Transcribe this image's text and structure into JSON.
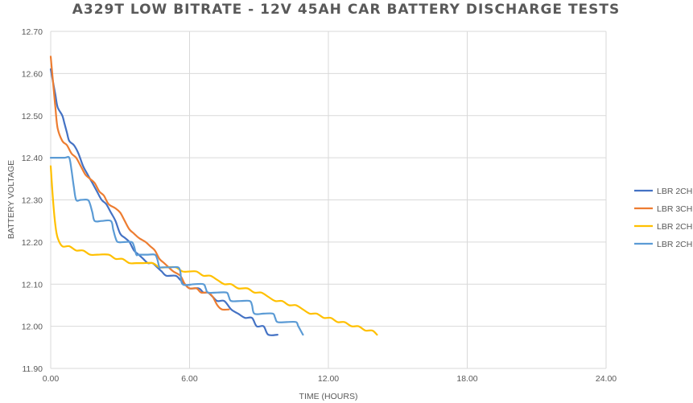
{
  "chart_data": {
    "type": "line",
    "title": "A329T LOW BITRATE - 12V 45AH CAR BATTERY DISCHARGE TESTS",
    "xlabel": "TIME (HOURS)",
    "ylabel": "BATTERY VOLTAGE",
    "xlim": [
      0,
      24
    ],
    "ylim": [
      11.9,
      12.7
    ],
    "x_ticks": [
      "0.00",
      "6.00",
      "12.00",
      "18.00",
      "24.00"
    ],
    "y_ticks": [
      "11.90",
      "12.00",
      "12.10",
      "12.20",
      "12.30",
      "12.40",
      "12.50",
      "12.60",
      "12.70"
    ],
    "grid": true,
    "legend_position": "right",
    "series": [
      {
        "name": "LBR 2CH",
        "color": "#4472C4",
        "points": [
          [
            0,
            12.61
          ],
          [
            0.1,
            12.58
          ],
          [
            0.2,
            12.55
          ],
          [
            0.3,
            12.52
          ],
          [
            0.5,
            12.5
          ],
          [
            0.6,
            12.48
          ],
          [
            0.7,
            12.46
          ],
          [
            0.8,
            12.44
          ],
          [
            1.0,
            12.43
          ],
          [
            1.2,
            12.41
          ],
          [
            1.4,
            12.38
          ],
          [
            1.6,
            12.36
          ],
          [
            1.8,
            12.34
          ],
          [
            2.0,
            12.32
          ],
          [
            2.2,
            12.3
          ],
          [
            2.4,
            12.29
          ],
          [
            2.6,
            12.27
          ],
          [
            2.8,
            12.25
          ],
          [
            3.0,
            12.22
          ],
          [
            3.2,
            12.21
          ],
          [
            3.4,
            12.2
          ],
          [
            3.6,
            12.18
          ],
          [
            3.8,
            12.17
          ],
          [
            4.0,
            12.16
          ],
          [
            4.2,
            12.15
          ],
          [
            4.4,
            12.15
          ],
          [
            4.6,
            12.14
          ],
          [
            4.8,
            12.13
          ],
          [
            5.0,
            12.12
          ],
          [
            5.4,
            12.12
          ],
          [
            5.6,
            12.11
          ],
          [
            5.8,
            12.1
          ],
          [
            6.0,
            12.09
          ],
          [
            6.4,
            12.09
          ],
          [
            6.6,
            12.08
          ],
          [
            6.8,
            12.08
          ],
          [
            7.0,
            12.07
          ],
          [
            7.2,
            12.06
          ],
          [
            7.5,
            12.06
          ],
          [
            7.8,
            12.04
          ],
          [
            8.1,
            12.03
          ],
          [
            8.4,
            12.02
          ],
          [
            8.7,
            12.02
          ],
          [
            8.9,
            12.0
          ],
          [
            9.2,
            12.0
          ],
          [
            9.4,
            11.98
          ],
          [
            9.8,
            11.98
          ]
        ]
      },
      {
        "name": "LBR 3CH",
        "color": "#ED7D31",
        "points": [
          [
            0,
            12.64
          ],
          [
            0.1,
            12.58
          ],
          [
            0.2,
            12.52
          ],
          [
            0.3,
            12.47
          ],
          [
            0.5,
            12.44
          ],
          [
            0.7,
            12.43
          ],
          [
            0.9,
            12.41
          ],
          [
            1.1,
            12.4
          ],
          [
            1.3,
            12.38
          ],
          [
            1.5,
            12.36
          ],
          [
            1.7,
            12.35
          ],
          [
            1.9,
            12.34
          ],
          [
            2.1,
            12.32
          ],
          [
            2.3,
            12.31
          ],
          [
            2.5,
            12.29
          ],
          [
            2.8,
            12.28
          ],
          [
            3.0,
            12.27
          ],
          [
            3.2,
            12.25
          ],
          [
            3.4,
            12.23
          ],
          [
            3.6,
            12.22
          ],
          [
            3.8,
            12.21
          ],
          [
            4.1,
            12.2
          ],
          [
            4.3,
            12.19
          ],
          [
            4.5,
            12.18
          ],
          [
            4.7,
            12.16
          ],
          [
            4.9,
            12.15
          ],
          [
            5.1,
            12.14
          ],
          [
            5.3,
            12.13
          ],
          [
            5.6,
            12.12
          ],
          [
            5.8,
            12.1
          ],
          [
            6.0,
            12.09
          ],
          [
            6.3,
            12.09
          ],
          [
            6.5,
            12.08
          ],
          [
            6.8,
            12.08
          ],
          [
            7.0,
            12.07
          ],
          [
            7.2,
            12.05
          ],
          [
            7.4,
            12.04
          ],
          [
            7.7,
            12.04
          ]
        ]
      },
      {
        "name": "LBR 2CH",
        "color": "#FFC000",
        "points": [
          [
            0,
            12.38
          ],
          [
            0.1,
            12.3
          ],
          [
            0.2,
            12.24
          ],
          [
            0.3,
            12.21
          ],
          [
            0.5,
            12.19
          ],
          [
            0.8,
            12.19
          ],
          [
            1.1,
            12.18
          ],
          [
            1.4,
            12.18
          ],
          [
            1.7,
            12.17
          ],
          [
            2.0,
            12.17
          ],
          [
            2.5,
            12.17
          ],
          [
            2.8,
            12.16
          ],
          [
            3.1,
            12.16
          ],
          [
            3.4,
            12.15
          ],
          [
            3.7,
            12.15
          ],
          [
            4.0,
            12.15
          ],
          [
            4.4,
            12.15
          ],
          [
            4.7,
            12.14
          ],
          [
            5.0,
            12.14
          ],
          [
            5.4,
            12.14
          ],
          [
            5.7,
            12.13
          ],
          [
            6.0,
            12.13
          ],
          [
            6.3,
            12.13
          ],
          [
            6.6,
            12.12
          ],
          [
            6.9,
            12.12
          ],
          [
            7.2,
            12.11
          ],
          [
            7.5,
            12.1
          ],
          [
            7.8,
            12.1
          ],
          [
            8.1,
            12.09
          ],
          [
            8.5,
            12.09
          ],
          [
            8.8,
            12.08
          ],
          [
            9.1,
            12.08
          ],
          [
            9.4,
            12.07
          ],
          [
            9.7,
            12.06
          ],
          [
            10.0,
            12.06
          ],
          [
            10.3,
            12.05
          ],
          [
            10.6,
            12.05
          ],
          [
            10.9,
            12.04
          ],
          [
            11.2,
            12.03
          ],
          [
            11.5,
            12.03
          ],
          [
            11.8,
            12.02
          ],
          [
            12.1,
            12.02
          ],
          [
            12.4,
            12.01
          ],
          [
            12.7,
            12.01
          ],
          [
            13.0,
            12.0
          ],
          [
            13.3,
            12.0
          ],
          [
            13.6,
            11.99
          ],
          [
            13.9,
            11.99
          ],
          [
            14.1,
            11.98
          ]
        ]
      },
      {
        "name": "LBR 2CH",
        "color": "#5B9BD5",
        "points": [
          [
            0,
            12.4
          ],
          [
            0.6,
            12.4
          ],
          [
            0.8,
            12.4
          ],
          [
            0.9,
            12.37
          ],
          [
            1.0,
            12.33
          ],
          [
            1.1,
            12.3
          ],
          [
            1.3,
            12.3
          ],
          [
            1.6,
            12.3
          ],
          [
            1.7,
            12.29
          ],
          [
            1.8,
            12.27
          ],
          [
            1.9,
            12.25
          ],
          [
            2.2,
            12.25
          ],
          [
            2.6,
            12.25
          ],
          [
            2.7,
            12.23
          ],
          [
            2.8,
            12.21
          ],
          [
            2.9,
            12.2
          ],
          [
            3.2,
            12.2
          ],
          [
            3.5,
            12.2
          ],
          [
            3.6,
            12.19
          ],
          [
            3.7,
            12.17
          ],
          [
            3.8,
            12.17
          ],
          [
            4.2,
            12.17
          ],
          [
            4.5,
            12.17
          ],
          [
            4.6,
            12.16
          ],
          [
            4.7,
            12.14
          ],
          [
            4.8,
            12.14
          ],
          [
            5.2,
            12.14
          ],
          [
            5.5,
            12.14
          ],
          [
            5.6,
            12.13
          ],
          [
            5.7,
            12.1
          ],
          [
            6.2,
            12.1
          ],
          [
            6.6,
            12.1
          ],
          [
            6.7,
            12.09
          ],
          [
            6.8,
            12.08
          ],
          [
            7.2,
            12.08
          ],
          [
            7.6,
            12.08
          ],
          [
            7.7,
            12.07
          ],
          [
            7.8,
            12.06
          ],
          [
            8.2,
            12.06
          ],
          [
            8.6,
            12.06
          ],
          [
            8.7,
            12.05
          ],
          [
            8.8,
            12.03
          ],
          [
            9.2,
            12.03
          ],
          [
            9.6,
            12.03
          ],
          [
            9.7,
            12.02
          ],
          [
            9.8,
            12.01
          ],
          [
            10.2,
            12.01
          ],
          [
            10.6,
            12.01
          ],
          [
            10.7,
            12.0
          ],
          [
            10.9,
            11.98
          ]
        ]
      }
    ]
  }
}
